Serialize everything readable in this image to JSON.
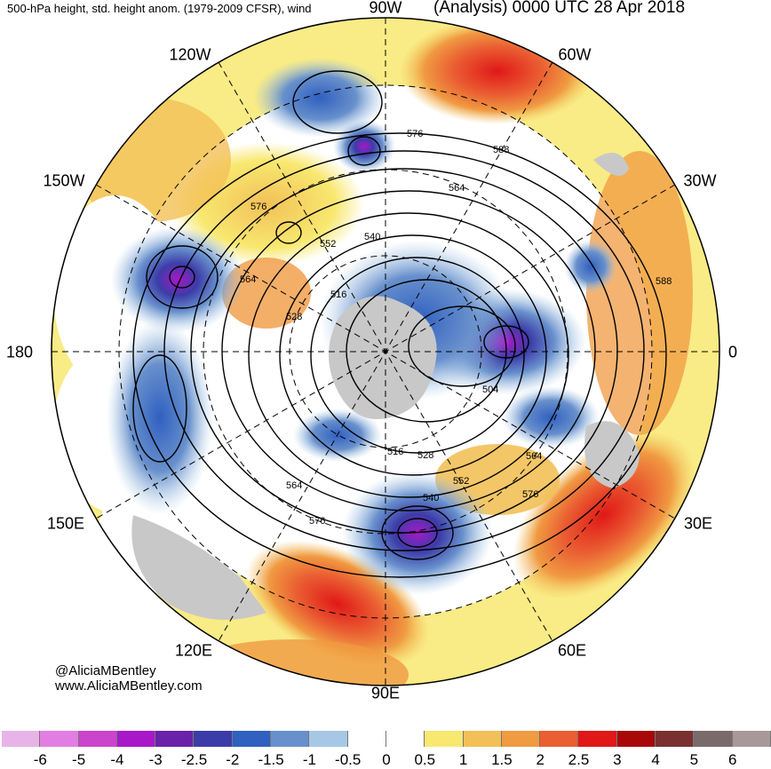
{
  "header": {
    "left_title": "500-hPa height, std. height anom. (1979-2009 CFSR), wind",
    "right_title": "(Analysis) 0000 UTC 28 Apr 2018"
  },
  "longitude_labels": {
    "lon_90w": "90W",
    "lon_120w": "120W",
    "lon_60w": "60W",
    "lon_150w": "150W",
    "lon_30w": "30W",
    "lon_180": "180",
    "lon_0": "0",
    "lon_150e": "150E",
    "lon_30e": "30E",
    "lon_120e": "120E",
    "lon_60e": "60E",
    "lon_90e": "90E"
  },
  "contour_labels": [
    "576",
    "588",
    "564",
    "552",
    "540",
    "564",
    "576",
    "516",
    "528",
    "588",
    "504",
    "516",
    "528",
    "552",
    "564",
    "540",
    "576",
    "564",
    "576"
  ],
  "credits": {
    "handle": "@AliciaMBentley",
    "website": "www.AliciaMBentley.com"
  },
  "colorbar": {
    "colors": [
      "#e8b4e8",
      "#e27ee2",
      "#cc44cc",
      "#a818c8",
      "#6a22a8",
      "#3c3ca8",
      "#3060c0",
      "#6890cc",
      "#a6c8e6",
      "#ffffff",
      "#ffffff",
      "#f8e870",
      "#f2c058",
      "#f09a42",
      "#ea5e32",
      "#e01818",
      "#a80808",
      "#7a3030",
      "#7a6a6a",
      "#a89898"
    ],
    "ticks": [
      "-6",
      "-5",
      "-4",
      "-3",
      "-2.5",
      "-2",
      "-1.5",
      "-1",
      "-0.5",
      "0",
      "0.5",
      "1",
      "1.5",
      "2",
      "2.5",
      "3",
      "4",
      "5",
      "6"
    ]
  }
}
